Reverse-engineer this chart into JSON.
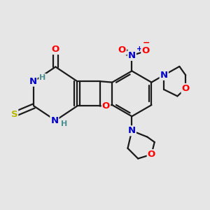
{
  "bg_color": "#e6e6e6",
  "bond_color": "#1a1a1a",
  "bond_width": 1.6,
  "atom_colors": {
    "O": "#ff0000",
    "N": "#0000cc",
    "S": "#b8b800",
    "H": "#4a9090",
    "C": "#1a1a1a"
  },
  "dbo": 0.12
}
